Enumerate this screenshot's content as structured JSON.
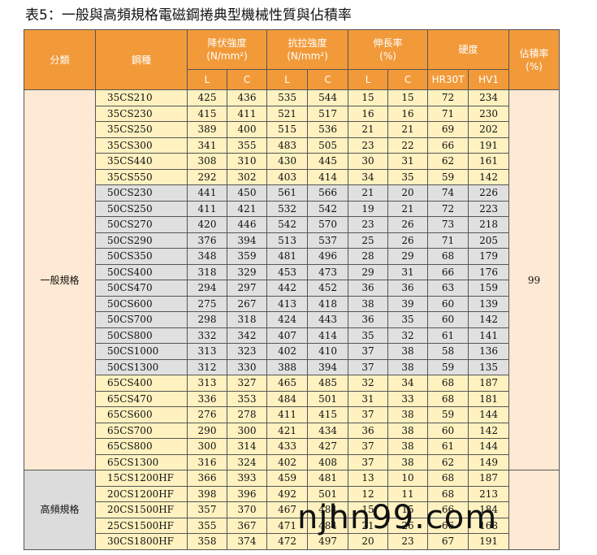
{
  "title": "表5：一般與高頻規格電磁鋼捲典型機械性質與佔積率",
  "headers": {
    "category": "分類",
    "steel": "鋼種",
    "yield": "降伏強度",
    "tensile": "抗拉強度",
    "unit": "(N/mm²)",
    "elongation": "伸長率",
    "pct": "(%)",
    "hardness": "硬度",
    "stacking": "佔積率",
    "stacking_unit": "(%)",
    "L": "L",
    "C": "C",
    "hr30t": "HR30T",
    "hv1": "HV1"
  },
  "groups": [
    {
      "name": "一般規格",
      "rows": [
        {
          "steel": "35CS210",
          "yl": "425",
          "yc": "436",
          "tl": "535",
          "tc": "544",
          "el": "15",
          "ec": "15",
          "hr": "72",
          "hv": "234",
          "shade": "y"
        },
        {
          "steel": "35CS230",
          "yl": "415",
          "yc": "411",
          "tl": "521",
          "tc": "517",
          "el": "16",
          "ec": "16",
          "hr": "71",
          "hv": "230",
          "shade": "y"
        },
        {
          "steel": "35CS250",
          "yl": "389",
          "yc": "400",
          "tl": "515",
          "tc": "536",
          "el": "21",
          "ec": "21",
          "hr": "69",
          "hv": "202",
          "shade": "y"
        },
        {
          "steel": "35CS300",
          "yl": "341",
          "yc": "355",
          "tl": "483",
          "tc": "505",
          "el": "23",
          "ec": "22",
          "hr": "66",
          "hv": "191",
          "shade": "y"
        },
        {
          "steel": "35CS440",
          "yl": "308",
          "yc": "310",
          "tl": "430",
          "tc": "445",
          "el": "30",
          "ec": "31",
          "hr": "62",
          "hv": "161",
          "shade": "y"
        },
        {
          "steel": "35CS550",
          "yl": "292",
          "yc": "302",
          "tl": "403",
          "tc": "414",
          "el": "34",
          "ec": "35",
          "hr": "59",
          "hv": "142",
          "shade": "y"
        },
        {
          "steel": "50CS230",
          "yl": "441",
          "yc": "450",
          "tl": "561",
          "tc": "566",
          "el": "21",
          "ec": "20",
          "hr": "74",
          "hv": "226",
          "shade": "g"
        },
        {
          "steel": "50CS250",
          "yl": "411",
          "yc": "421",
          "tl": "532",
          "tc": "542",
          "el": "19",
          "ec": "21",
          "hr": "72",
          "hv": "223",
          "shade": "g"
        },
        {
          "steel": "50CS270",
          "yl": "420",
          "yc": "446",
          "tl": "542",
          "tc": "570",
          "el": "23",
          "ec": "26",
          "hr": "73",
          "hv": "218",
          "shade": "g"
        },
        {
          "steel": "50CS290",
          "yl": "376",
          "yc": "394",
          "tl": "513",
          "tc": "537",
          "el": "25",
          "ec": "26",
          "hr": "71",
          "hv": "205",
          "shade": "g"
        },
        {
          "steel": "50CS350",
          "yl": "348",
          "yc": "359",
          "tl": "481",
          "tc": "496",
          "el": "28",
          "ec": "29",
          "hr": "68",
          "hv": "179",
          "shade": "g"
        },
        {
          "steel": "50CS400",
          "yl": "318",
          "yc": "329",
          "tl": "453",
          "tc": "473",
          "el": "29",
          "ec": "31",
          "hr": "66",
          "hv": "176",
          "shade": "g"
        },
        {
          "steel": "50CS470",
          "yl": "294",
          "yc": "297",
          "tl": "442",
          "tc": "452",
          "el": "36",
          "ec": "36",
          "hr": "63",
          "hv": "159",
          "shade": "g"
        },
        {
          "steel": "50CS600",
          "yl": "275",
          "yc": "267",
          "tl": "413",
          "tc": "418",
          "el": "38",
          "ec": "39",
          "hr": "60",
          "hv": "139",
          "shade": "g"
        },
        {
          "steel": "50CS700",
          "yl": "298",
          "yc": "318",
          "tl": "424",
          "tc": "443",
          "el": "36",
          "ec": "35",
          "hr": "60",
          "hv": "142",
          "shade": "g"
        },
        {
          "steel": "50CS800",
          "yl": "332",
          "yc": "342",
          "tl": "407",
          "tc": "414",
          "el": "35",
          "ec": "32",
          "hr": "61",
          "hv": "141",
          "shade": "g"
        },
        {
          "steel": "50CS1000",
          "yl": "313",
          "yc": "323",
          "tl": "402",
          "tc": "410",
          "el": "37",
          "ec": "38",
          "hr": "58",
          "hv": "136",
          "shade": "g"
        },
        {
          "steel": "50CS1300",
          "yl": "312",
          "yc": "330",
          "tl": "388",
          "tc": "394",
          "el": "37",
          "ec": "38",
          "hr": "59",
          "hv": "135",
          "shade": "g"
        },
        {
          "steel": "65CS400",
          "yl": "313",
          "yc": "327",
          "tl": "465",
          "tc": "485",
          "el": "32",
          "ec": "34",
          "hr": "68",
          "hv": "187",
          "shade": "y"
        },
        {
          "steel": "65CS470",
          "yl": "336",
          "yc": "353",
          "tl": "484",
          "tc": "501",
          "el": "31",
          "ec": "33",
          "hr": "68",
          "hv": "181",
          "shade": "y"
        },
        {
          "steel": "65CS600",
          "yl": "276",
          "yc": "278",
          "tl": "411",
          "tc": "415",
          "el": "37",
          "ec": "38",
          "hr": "59",
          "hv": "144",
          "shade": "y"
        },
        {
          "steel": "65CS700",
          "yl": "290",
          "yc": "300",
          "tl": "421",
          "tc": "434",
          "el": "36",
          "ec": "38",
          "hr": "60",
          "hv": "142",
          "shade": "y"
        },
        {
          "steel": "65CS800",
          "yl": "300",
          "yc": "314",
          "tl": "433",
          "tc": "427",
          "el": "37",
          "ec": "38",
          "hr": "61",
          "hv": "144",
          "shade": "y"
        },
        {
          "steel": "65CS1300",
          "yl": "316",
          "yc": "324",
          "tl": "402",
          "tc": "408",
          "el": "37",
          "ec": "38",
          "hr": "62",
          "hv": "149",
          "shade": "y"
        }
      ]
    },
    {
      "name": "高頻規格",
      "rows": [
        {
          "steel": "15CS1200HF",
          "yl": "366",
          "yc": "393",
          "tl": "459",
          "tc": "481",
          "el": "13",
          "ec": "10",
          "hr": "68",
          "hv": "187",
          "shade": "y"
        },
        {
          "steel": "20CS1200HF",
          "yl": "398",
          "yc": "396",
          "tl": "492",
          "tc": "501",
          "el": "12",
          "ec": "11",
          "hr": "68",
          "hv": "213",
          "shade": "y"
        },
        {
          "steel": "20CS1500HF",
          "yl": "357",
          "yc": "370",
          "tl": "467",
          "tc": "484",
          "el": "15",
          "ec": "15",
          "hr": "66",
          "hv": "184",
          "shade": "y"
        },
        {
          "steel": "25CS1500HF",
          "yl": "355",
          "yc": "367",
          "tl": "471",
          "tc": "484",
          "el": "21",
          "ec": "26",
          "hr": "66",
          "hv": "168",
          "shade": "y"
        },
        {
          "steel": "30CS1800HF",
          "yl": "358",
          "yc": "374",
          "tl": "472",
          "tc": "497",
          "el": "20",
          "ec": "23",
          "hr": "67",
          "hv": "191",
          "shade": "y"
        }
      ]
    }
  ],
  "stacking_value": "99",
  "watermark": "njhn99.com"
}
